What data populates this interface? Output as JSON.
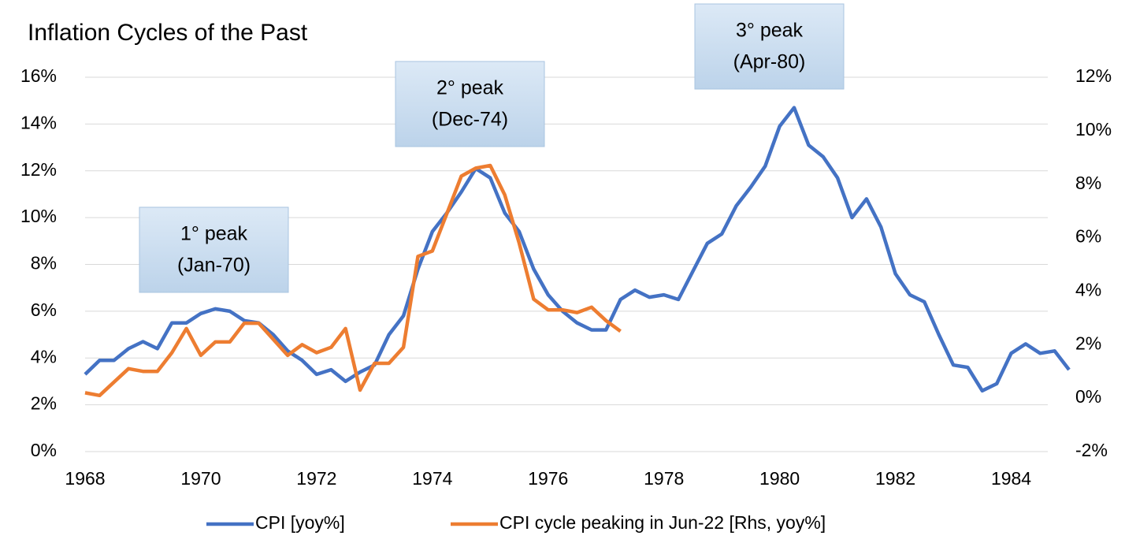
{
  "chart_data": {
    "type": "line",
    "title": "Inflation Cycles of the Past",
    "x": [
      1968.0,
      1968.25,
      1968.5,
      1968.75,
      1969.0,
      1969.25,
      1969.5,
      1969.75,
      1970.0,
      1970.25,
      1970.5,
      1970.75,
      1971.0,
      1971.25,
      1971.5,
      1971.75,
      1972.0,
      1972.25,
      1972.5,
      1972.75,
      1973.0,
      1973.25,
      1973.5,
      1973.75,
      1974.0,
      1974.25,
      1974.5,
      1974.75,
      1975.0,
      1975.25,
      1975.5,
      1975.75,
      1976.0,
      1976.25,
      1976.5,
      1976.75,
      1977.0,
      1977.25,
      1977.5,
      1977.75,
      1978.0,
      1978.25,
      1978.5,
      1978.75,
      1979.0,
      1979.25,
      1979.5,
      1979.75,
      1980.0,
      1980.25,
      1980.5,
      1980.75,
      1981.0,
      1981.25,
      1981.5,
      1981.75,
      1982.0,
      1982.25,
      1982.5,
      1982.75,
      1983.0,
      1983.25,
      1983.5,
      1983.75,
      1984.0,
      1984.25,
      1984.5,
      1984.75,
      1985.0
    ],
    "series": [
      {
        "name": "CPI [yoy%]",
        "color": "#4472c4",
        "values": [
          3.3,
          3.9,
          3.9,
          4.4,
          4.7,
          4.4,
          5.5,
          5.5,
          5.9,
          6.1,
          6.0,
          5.6,
          5.5,
          5.0,
          4.3,
          3.9,
          3.3,
          3.5,
          3.0,
          3.4,
          3.7,
          5.0,
          5.8,
          7.8,
          9.4,
          10.2,
          11.1,
          12.1,
          11.7,
          10.2,
          9.4,
          7.8,
          6.7,
          6.0,
          5.5,
          5.2,
          5.2,
          6.5,
          6.9,
          6.6,
          6.7,
          6.5,
          7.7,
          8.9,
          9.3,
          10.5,
          11.3,
          12.2,
          13.9,
          14.7,
          13.1,
          12.6,
          11.7,
          10.0,
          10.8,
          9.6,
          7.6,
          6.7,
          6.4,
          5.0,
          3.7,
          3.6,
          2.6,
          2.9,
          4.2,
          4.6,
          4.2,
          4.3,
          3.5
        ]
      },
      {
        "name": "CPI cycle peaking in Jun-22 [Rhs, yoy%]",
        "color": "#ed7d31",
        "axis": "y2",
        "values": [
          0.2,
          0.1,
          0.6,
          1.1,
          1.0,
          1.0,
          1.7,
          2.6,
          1.6,
          2.1,
          2.1,
          2.8,
          2.8,
          2.2,
          1.6,
          2.0,
          1.7,
          1.9,
          2.6,
          0.3,
          1.3,
          1.3,
          1.9,
          5.3,
          5.5,
          6.9,
          8.3,
          8.6,
          8.7,
          7.6,
          5.8,
          3.7,
          3.3,
          3.3,
          3.2,
          3.4,
          2.9,
          2.5,
          null,
          null,
          null,
          null,
          null,
          null,
          null,
          null,
          null,
          null,
          null,
          null,
          null,
          null,
          null,
          null,
          null,
          null,
          null,
          null,
          null,
          null,
          null,
          null,
          null,
          null,
          null,
          null,
          null,
          null,
          null
        ]
      }
    ],
    "xlim": [
      1968,
      1985
    ],
    "xticks": [
      1968,
      1970,
      1972,
      1974,
      1976,
      1978,
      1980,
      1982,
      1984
    ],
    "ylim": [
      0,
      16
    ],
    "yticks": [
      {
        "value": 0,
        "label": "0%"
      },
      {
        "value": 2,
        "label": "2%"
      },
      {
        "value": 4,
        "label": "4%"
      },
      {
        "value": 6,
        "label": "6%"
      },
      {
        "value": 8,
        "label": "8%"
      },
      {
        "value": 10,
        "label": "10%"
      },
      {
        "value": 12,
        "label": "12%"
      },
      {
        "value": 14,
        "label": "14%"
      },
      {
        "value": 16,
        "label": "16%"
      }
    ],
    "y2lim": [
      -2,
      12
    ],
    "y2ticks": [
      {
        "value": -2,
        "label": "-2%"
      },
      {
        "value": 0,
        "label": "0%"
      },
      {
        "value": 2,
        "label": "2%"
      },
      {
        "value": 4,
        "label": "4%"
      },
      {
        "value": 6,
        "label": "6%"
      },
      {
        "value": 8,
        "label": "8%"
      },
      {
        "value": 10,
        "label": "10%"
      },
      {
        "value": 12,
        "label": "12%"
      }
    ],
    "grid": true,
    "legend": "bottom",
    "annotations": [
      {
        "lines": [
          "1° peak",
          "(Jan-70)"
        ]
      },
      {
        "lines": [
          "2° peak",
          "(Dec-74)"
        ]
      },
      {
        "lines": [
          "3° peak",
          "(Apr-80)"
        ]
      }
    ]
  }
}
